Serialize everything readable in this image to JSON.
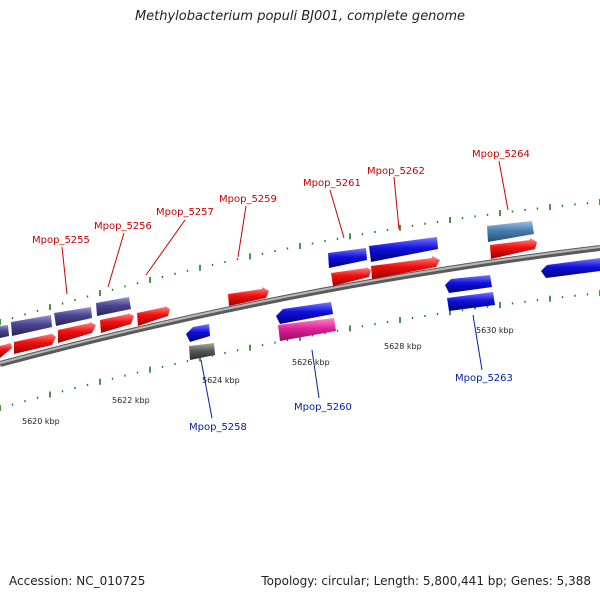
{
  "title": "Methylobacterium populi BJ001, complete genome",
  "colors": {
    "forward_cds": "#f01010",
    "reverse_cds": "#1010dd",
    "dark_purple": "#4a4490",
    "steel_blue": "#4a7fb0",
    "magenta": "#e0219a",
    "gray": "#5a5a5a",
    "label_forward": "#cc0000",
    "label_reverse": "#0022aa",
    "backbone": "#8a8a8a",
    "tick": "#1a7a1a"
  },
  "kbp_labels": [
    "5620 kbp",
    "5622 kbp",
    "5624 kbp",
    "5626 kbp",
    "5628 kbp",
    "5630 kbp"
  ],
  "gene_labels": {
    "Mpop_5255": "Mpop_5255",
    "Mpop_5256": "Mpop_5256",
    "Mpop_5257": "Mpop_5257",
    "Mpop_5258": "Mpop_5258",
    "Mpop_5259": "Mpop_5259",
    "Mpop_5260": "Mpop_5260",
    "Mpop_5261": "Mpop_5261",
    "Mpop_5262": "Mpop_5262",
    "Mpop_5263": "Mpop_5263",
    "Mpop_5264": "Mpop_5264"
  },
  "footer": {
    "accession": "Accession: NC_010725",
    "stats": "Topology: circular; Length: 5,800,441 bp; Genes: 5,388"
  }
}
